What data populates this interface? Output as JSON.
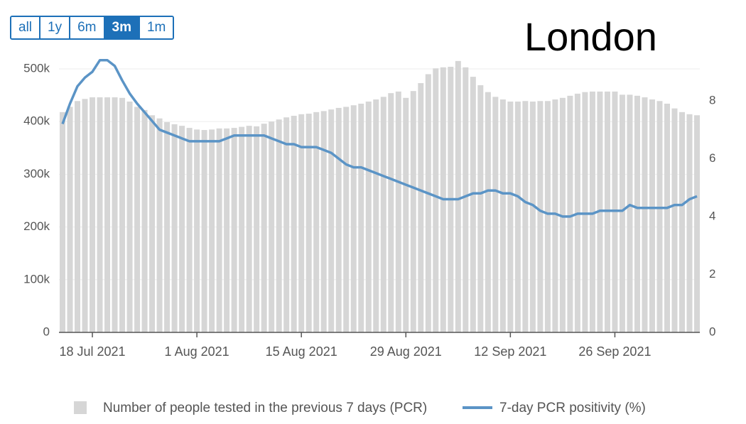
{
  "range_buttons": {
    "options": [
      "all",
      "1y",
      "6m",
      "3m",
      "1m"
    ],
    "selected": 3
  },
  "chart_data": {
    "type": "bar-line",
    "title": "London",
    "x": [
      "2021-07-14",
      "2021-07-15",
      "2021-07-16",
      "2021-07-17",
      "2021-07-18",
      "2021-07-19",
      "2021-07-20",
      "2021-07-21",
      "2021-07-22",
      "2021-07-23",
      "2021-07-24",
      "2021-07-25",
      "2021-07-26",
      "2021-07-27",
      "2021-07-28",
      "2021-07-29",
      "2021-07-30",
      "2021-07-31",
      "2021-08-01",
      "2021-08-02",
      "2021-08-03",
      "2021-08-04",
      "2021-08-05",
      "2021-08-06",
      "2021-08-07",
      "2021-08-08",
      "2021-08-09",
      "2021-08-10",
      "2021-08-11",
      "2021-08-12",
      "2021-08-13",
      "2021-08-14",
      "2021-08-15",
      "2021-08-16",
      "2021-08-17",
      "2021-08-18",
      "2021-08-19",
      "2021-08-20",
      "2021-08-21",
      "2021-08-22",
      "2021-08-23",
      "2021-08-24",
      "2021-08-25",
      "2021-08-26",
      "2021-08-27",
      "2021-08-28",
      "2021-08-29",
      "2021-08-30",
      "2021-08-31",
      "2021-09-01",
      "2021-09-02",
      "2021-09-03",
      "2021-09-04",
      "2021-09-05",
      "2021-09-06",
      "2021-09-07",
      "2021-09-08",
      "2021-09-09",
      "2021-09-10",
      "2021-09-11",
      "2021-09-12",
      "2021-09-13",
      "2021-09-14",
      "2021-09-15",
      "2021-09-16",
      "2021-09-17",
      "2021-09-18",
      "2021-09-19",
      "2021-09-20",
      "2021-09-21",
      "2021-09-22",
      "2021-09-23",
      "2021-09-24",
      "2021-09-25",
      "2021-09-26",
      "2021-09-27",
      "2021-09-28",
      "2021-09-29",
      "2021-09-30",
      "2021-10-01",
      "2021-10-02",
      "2021-10-03",
      "2021-10-04",
      "2021-10-05",
      "2021-10-06",
      "2021-10-07"
    ],
    "xlim": [
      "2021-07-14",
      "2021-10-07"
    ],
    "xticks": [
      {
        "value": "2021-07-18",
        "label": "18 Jul 2021"
      },
      {
        "value": "2021-08-01",
        "label": "1 Aug 2021"
      },
      {
        "value": "2021-08-15",
        "label": "15 Aug 2021"
      },
      {
        "value": "2021-08-29",
        "label": "29 Aug 2021"
      },
      {
        "value": "2021-09-12",
        "label": "12 Sep 2021"
      },
      {
        "value": "2021-09-26",
        "label": "26 Sep 2021"
      }
    ],
    "series": [
      {
        "name": "Number of people tested in the previous 7 days (PCR)",
        "type": "bar",
        "color": "#d6d6d6",
        "values": [
          418000,
          428000,
          439000,
          443000,
          446000,
          446000,
          446000,
          446000,
          445000,
          438000,
          428000,
          422000,
          412000,
          406000,
          399000,
          395000,
          392000,
          388000,
          385000,
          384000,
          385000,
          387000,
          387000,
          388000,
          390000,
          392000,
          391000,
          396000,
          400000,
          404000,
          408000,
          411000,
          414000,
          415000,
          418000,
          420000,
          423000,
          426000,
          428000,
          431000,
          434000,
          438000,
          442000,
          447000,
          454000,
          457000,
          445000,
          458000,
          473000,
          490000,
          501000,
          503000,
          504000,
          515000,
          503000,
          485000,
          469000,
          456000,
          447000,
          442000,
          438000,
          438000,
          439000,
          438000,
          439000,
          439000,
          442000,
          445000,
          449000,
          453000,
          456000,
          457000,
          457000,
          457000,
          457000,
          451000,
          451000,
          449000,
          446000,
          442000,
          439000,
          434000,
          425000,
          418000,
          414000,
          412000
        ]
      },
      {
        "name": "7-day PCR positivity (%)",
        "type": "line",
        "axis": "y2",
        "color": "#5b94c6",
        "values": [
          7.2,
          7.9,
          8.5,
          8.8,
          9.0,
          9.4,
          9.4,
          9.2,
          8.7,
          8.25,
          7.9,
          7.6,
          7.3,
          7.0,
          6.9,
          6.8,
          6.7,
          6.6,
          6.6,
          6.6,
          6.6,
          6.6,
          6.7,
          6.8,
          6.8,
          6.8,
          6.8,
          6.8,
          6.7,
          6.6,
          6.5,
          6.5,
          6.4,
          6.4,
          6.4,
          6.3,
          6.2,
          6.0,
          5.8,
          5.7,
          5.7,
          5.6,
          5.5,
          5.4,
          5.3,
          5.2,
          5.1,
          5.0,
          4.9,
          4.8,
          4.7,
          4.6,
          4.6,
          4.6,
          4.7,
          4.8,
          4.8,
          4.9,
          4.9,
          4.8,
          4.8,
          4.7,
          4.5,
          4.4,
          4.2,
          4.1,
          4.1,
          4.0,
          4.0,
          4.1,
          4.1,
          4.1,
          4.2,
          4.2,
          4.2,
          4.2,
          4.4,
          4.3,
          4.3,
          4.3,
          4.3,
          4.3,
          4.4,
          4.4,
          4.6,
          4.7
        ]
      }
    ],
    "ylim": [
      0,
      500000
    ],
    "yticks": [
      0,
      {
        "value": 100000,
        "label": "100k"
      },
      {
        "value": 200000,
        "label": "200k"
      },
      {
        "value": 300000,
        "label": "300k"
      },
      {
        "value": 400000,
        "label": "400k"
      },
      {
        "value": 500000,
        "label": "500k"
      }
    ],
    "y2lim": [
      0,
      9.1
    ],
    "y2ticks": [
      0,
      2,
      4,
      6,
      8
    ],
    "grid": true
  }
}
